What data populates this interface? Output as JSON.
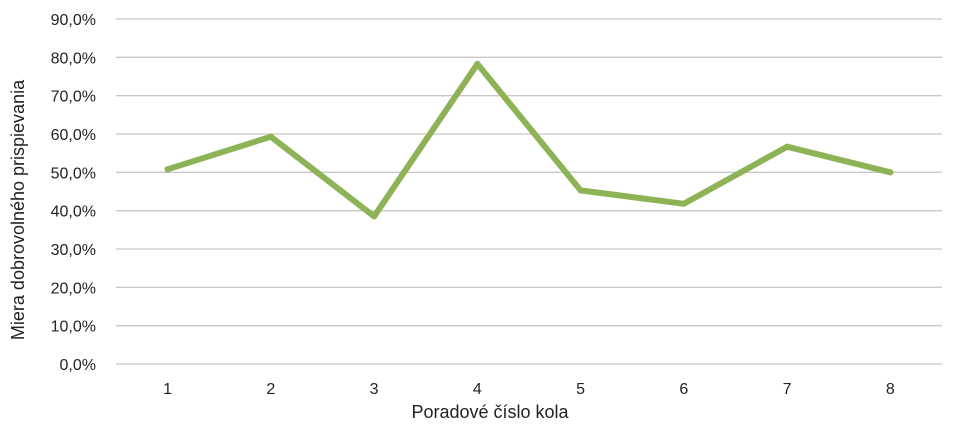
{
  "chart_data": {
    "type": "line",
    "title": "",
    "xlabel": "Poradové číslo kola",
    "ylabel": "Miera dobrovolného prispievania",
    "categories": [
      "1",
      "2",
      "3",
      "4",
      "5",
      "6",
      "7",
      "8"
    ],
    "series": [
      {
        "values": [
          50.8,
          59.3,
          38.5,
          78.3,
          45.3,
          41.8,
          56.7,
          50.0
        ],
        "color": "#8db356"
      }
    ],
    "ylim": [
      0,
      90
    ],
    "yticks": [
      "0,0%",
      "10,0%",
      "20,0%",
      "30,0%",
      "40,0%",
      "50,0%",
      "60,0%",
      "70,0%",
      "80,0%",
      "90,0%"
    ],
    "grid": true,
    "legend": "none",
    "gridline_color": "#c8c8c8",
    "axis_color": "#c8c8c8"
  }
}
